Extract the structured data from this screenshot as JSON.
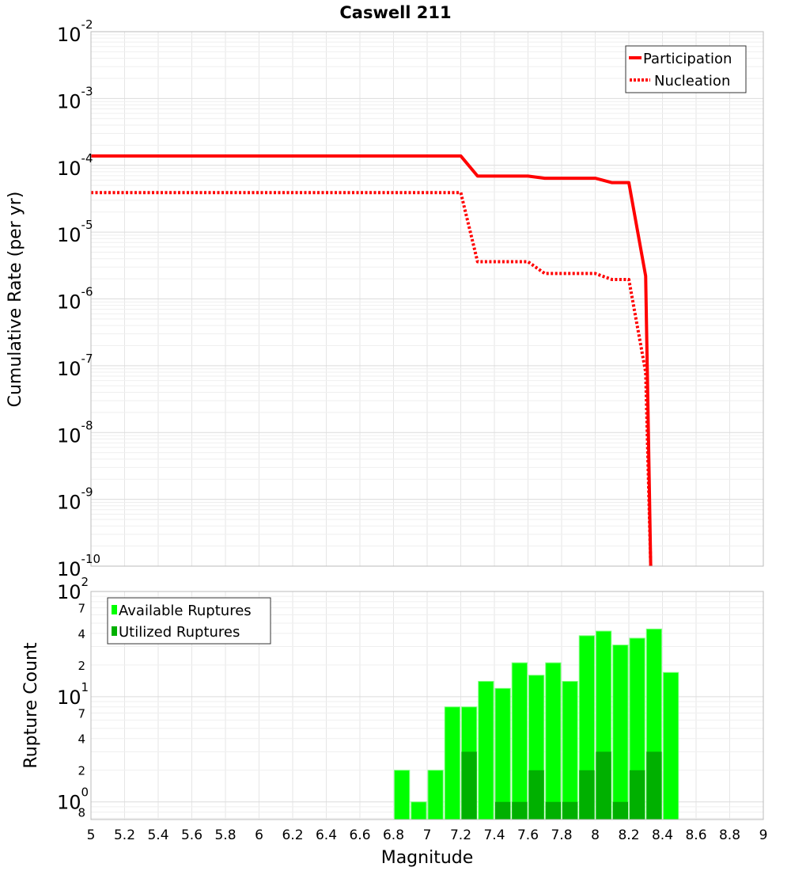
{
  "chart_data": [
    {
      "type": "line",
      "title": "Caswell 211",
      "xlabel": "",
      "ylabel": "Cumulative Rate (per yr)",
      "yscale": "log",
      "xlim": [
        5,
        9
      ],
      "ylim": [
        1e-10,
        0.01
      ],
      "ytick_exponents": [
        "-2",
        "-3",
        "-4",
        "-5",
        "-6",
        "-7",
        "-8",
        "-9",
        "-10"
      ],
      "grid": true,
      "legend_position": "top-right",
      "series": [
        {
          "name": "Participation",
          "style": "solid",
          "color": "#ff0000",
          "x": [
            5.0,
            7.2,
            7.3,
            7.6,
            7.7,
            8.0,
            8.1,
            8.2,
            8.3,
            8.33
          ],
          "y": [
            0.000138,
            0.000138,
            6.9e-05,
            6.9e-05,
            6.4e-05,
            6.4e-05,
            5.5e-05,
            5.5e-05,
            2.2e-06,
            1e-10
          ]
        },
        {
          "name": "Nucleation",
          "style": "dotted",
          "color": "#ff0000",
          "x": [
            5.0,
            7.2,
            7.3,
            7.6,
            7.7,
            8.0,
            8.1,
            8.2,
            8.3,
            8.33
          ],
          "y": [
            3.9e-05,
            3.9e-05,
            3.6e-06,
            3.6e-06,
            2.4e-06,
            2.4e-06,
            1.95e-06,
            1.95e-06,
            8e-08,
            1e-10
          ]
        }
      ]
    },
    {
      "type": "bar",
      "xlabel": "Magnitude",
      "ylabel": "Rupture Count",
      "yscale": "log",
      "xlim": [
        5,
        9
      ],
      "ylim": [
        0.68,
        100
      ],
      "xticks": [
        "5",
        "5.2",
        "5.4",
        "5.6",
        "5.8",
        "6",
        "6.2",
        "6.4",
        "6.6",
        "6.8",
        "7",
        "7.2",
        "7.4",
        "7.6",
        "7.8",
        "8",
        "8.2",
        "8.4",
        "8.6",
        "8.8",
        "9"
      ],
      "yticks": [
        {
          "v": 100,
          "base": "10",
          "exp": "2"
        },
        {
          "v": 70,
          "label": "7"
        },
        {
          "v": 40,
          "label": "4"
        },
        {
          "v": 20,
          "label": "2"
        },
        {
          "v": 10,
          "base": "10",
          "exp": "1"
        },
        {
          "v": 7,
          "label": "7"
        },
        {
          "v": 4,
          "label": "4"
        },
        {
          "v": 2,
          "label": "2"
        },
        {
          "v": 1,
          "base": "10",
          "exp": "0"
        },
        {
          "v": 0.8,
          "label": "8"
        }
      ],
      "grid": true,
      "legend_position": "top-left",
      "bin_start": [
        6.8,
        6.9,
        7.0,
        7.1,
        7.2,
        7.3,
        7.4,
        7.5,
        7.6,
        7.7,
        7.8,
        7.9,
        8.0,
        8.1,
        8.2,
        8.3,
        8.4
      ],
      "bin_width": 0.1,
      "series": [
        {
          "name": "Available Ruptures",
          "color": "#00ff00",
          "values": [
            2,
            1,
            2,
            8,
            8,
            14,
            12,
            21,
            16,
            21,
            14,
            38,
            42,
            31,
            36,
            44,
            17
          ]
        },
        {
          "name": "Utilized Ruptures",
          "color": "#00b000",
          "values": [
            0,
            0,
            0,
            0,
            3,
            0,
            1,
            1,
            2,
            1,
            1,
            2,
            3,
            1,
            2,
            3,
            0
          ]
        }
      ]
    }
  ]
}
